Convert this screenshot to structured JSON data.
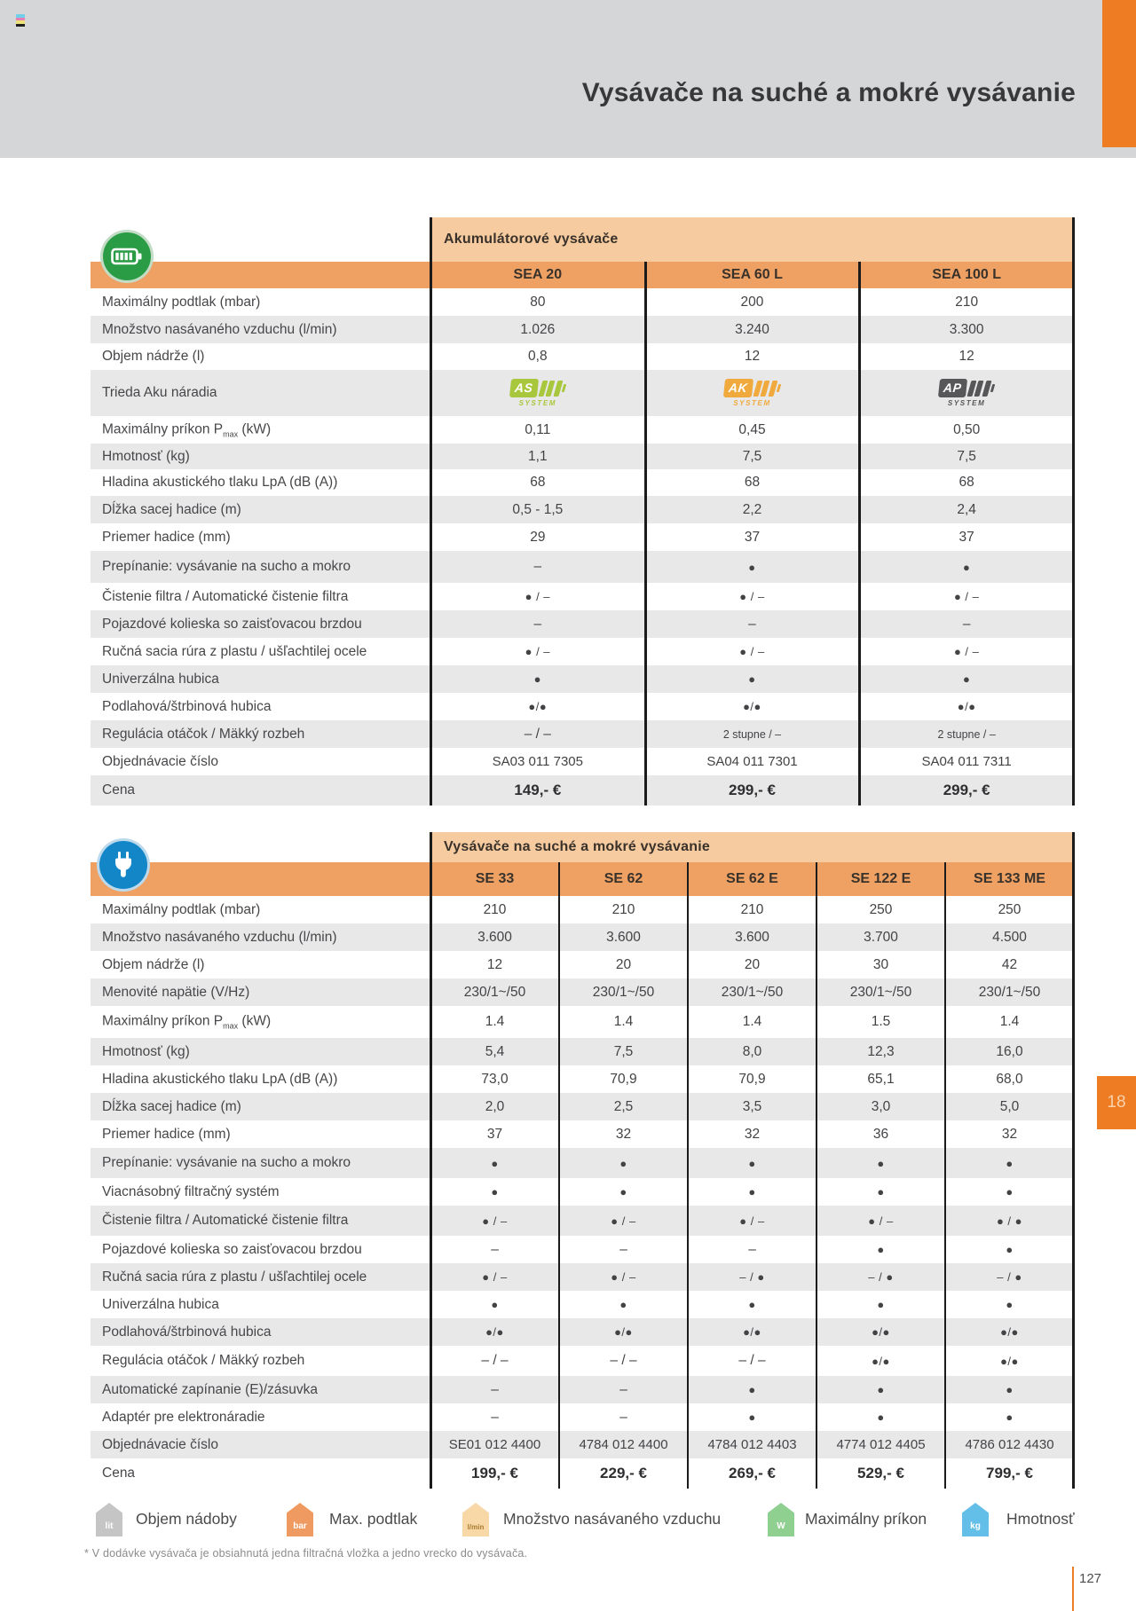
{
  "header": {
    "title": "Vysávače na suché a mokré vysávanie"
  },
  "accent": {
    "side_tab_label": "18",
    "page_number": "127"
  },
  "footnote": "* V dodávke vysávača je obsiahnutá jedna filtračná vložka a jedno vrecko do vysávača.",
  "colors": {
    "brand_orange": "#ee7c22",
    "band_orange": "#efa164",
    "peach": "#f6cba0",
    "row_gray": "#e8e8e9",
    "header_gray": "#d5d6d8"
  },
  "tables": [
    {
      "id": "t1",
      "icon": "battery-icon",
      "header": "Akumulátorové vysávače",
      "models": [
        "SEA 20",
        "SEA 60 L",
        "SEA 100 L"
      ],
      "system_word": "SYSTEM",
      "rows": [
        {
          "label": "Maximálny podtlak (mbar)",
          "values": [
            "80",
            "200",
            "210"
          ]
        },
        {
          "label": "Množstvo nasávaného vzduchu (l/min)",
          "values": [
            "1.026",
            "3.240",
            "3.300"
          ]
        },
        {
          "label": "Objem nádrže (l)",
          "values": [
            "0,8",
            "12",
            "12"
          ]
        },
        {
          "label": "Trieda Aku náradia",
          "type": "badges",
          "badges": [
            {
              "letters": "AS",
              "color": "#a8c73c"
            },
            {
              "letters": "AK",
              "color": "#f0a93c"
            },
            {
              "letters": "AP",
              "color": "#57575a"
            }
          ]
        },
        {
          "label_pre": "Maximálny príkon P",
          "label_sub": "max",
          "label_post": " (kW)",
          "values": [
            "0,11",
            "0,45",
            "0,50"
          ]
        },
        {
          "label": "Hmotnosť (kg)",
          "values": [
            "1,1",
            "7,5",
            "7,5"
          ]
        },
        {
          "label": "Hladina akustického tlaku LpA (dB (A))",
          "values": [
            "68",
            "68",
            "68"
          ]
        },
        {
          "label": "Dĺžka sacej hadice (m)",
          "values": [
            "0,5 - 1,5",
            "2,2",
            "2,4"
          ]
        },
        {
          "label": "Priemer hadice (mm)",
          "values": [
            "29",
            "37",
            "37"
          ]
        },
        {
          "label": "Prepínanie: vysávanie na sucho a mokro",
          "values": [
            "–",
            "●",
            "●"
          ]
        },
        {
          "label": "Čistenie filtra / Automatické čistenie filtra",
          "values": [
            "● / –",
            "● / –",
            "● / –"
          ]
        },
        {
          "label": "Pojazdové kolieska so zaisťovacou brzdou",
          "values": [
            "–",
            "–",
            "–"
          ]
        },
        {
          "label": "Ručná sacia rúra z plastu / ušľachtilej ocele",
          "values": [
            "● / –",
            "● / –",
            "● / –"
          ]
        },
        {
          "label": "Univerzálna hubica",
          "values": [
            "●",
            "●",
            "●"
          ]
        },
        {
          "label": "Podlahová/štrbinová hubica",
          "values": [
            "●/●",
            "●/●",
            "●/●"
          ]
        },
        {
          "label": "Regulácia otáčok / Mäkký rozbeh",
          "values": [
            "– / –",
            "2 stupne / –",
            "2 stupne / –"
          ]
        },
        {
          "label": "Objednávacie číslo",
          "values": [
            "SA03 011 7305",
            "SA04 011 7301",
            "SA04 011 7311"
          ]
        },
        {
          "label": "Cena",
          "values": [
            "149,- €",
            "299,- €",
            "299,- €"
          ]
        }
      ]
    },
    {
      "id": "t2",
      "icon": "plug-icon",
      "header": "Vysávače na suché a mokré vysávanie",
      "models": [
        "SE 33",
        "SE 62",
        "SE 62 E",
        "SE 122 E",
        "SE 133 ME"
      ],
      "rows": [
        {
          "label": "Maximálny podtlak (mbar)",
          "values": [
            "210",
            "210",
            "210",
            "250",
            "250"
          ]
        },
        {
          "label": "Množstvo nasávaného vzduchu (l/min)",
          "values": [
            "3.600",
            "3.600",
            "3.600",
            "3.700",
            "4.500"
          ]
        },
        {
          "label": "Objem nádrže (l)",
          "values": [
            "12",
            "20",
            "20",
            "30",
            "42"
          ]
        },
        {
          "label": "Menovité napätie (V/Hz)",
          "values": [
            "230/1~/50",
            "230/1~/50",
            "230/1~/50",
            "230/1~/50",
            "230/1~/50"
          ]
        },
        {
          "label_pre": "Maximálny príkon P",
          "label_sub": "max",
          "label_post": " (kW)",
          "values": [
            "1.4",
            "1.4",
            "1.4",
            "1.5",
            "1.4"
          ]
        },
        {
          "label": "Hmotnosť (kg)",
          "values": [
            "5,4",
            "7,5",
            "8,0",
            "12,3",
            "16,0"
          ]
        },
        {
          "label": "Hladina akustického tlaku LpA (dB (A))",
          "values": [
            "73,0",
            "70,9",
            "70,9",
            "65,1",
            "68,0"
          ]
        },
        {
          "label": "Dĺžka sacej hadice (m)",
          "values": [
            "2,0",
            "2,5",
            "3,5",
            "3,0",
            "5,0"
          ]
        },
        {
          "label": "Priemer hadice (mm)",
          "values": [
            "37",
            "32",
            "32",
            "36",
            "32"
          ]
        },
        {
          "label": "Prepínanie: vysávanie na sucho a mokro",
          "values": [
            "●",
            "●",
            "●",
            "●",
            "●"
          ]
        },
        {
          "label": "Viacnásobný filtračný systém",
          "values": [
            "●",
            "●",
            "●",
            "●",
            "●"
          ]
        },
        {
          "label": "Čistenie filtra / Automatické čistenie filtra",
          "values": [
            "● / –",
            "● / –",
            "● / –",
            "● / –",
            "● / ●"
          ]
        },
        {
          "label": "Pojazdové kolieska so zaisťovacou brzdou",
          "values": [
            "–",
            "–",
            "–",
            "●",
            "●"
          ]
        },
        {
          "label": "Ručná sacia rúra z plastu / ušľachtilej ocele",
          "values": [
            "● / –",
            "● / –",
            "– / ●",
            "– / ●",
            "– / ●"
          ]
        },
        {
          "label": "Univerzálna hubica",
          "values": [
            "●",
            "●",
            "●",
            "●",
            "●"
          ]
        },
        {
          "label": "Podlahová/štrbinová hubica",
          "values": [
            "●/●",
            "●/●",
            "●/●",
            "●/●",
            "●/●"
          ]
        },
        {
          "label": "Regulácia otáčok / Mäkký rozbeh",
          "values": [
            "– / –",
            "– / –",
            "– / –",
            "●/●",
            "●/●"
          ]
        },
        {
          "label": "Automatické zapínanie (E)/zásuvka",
          "values": [
            "–",
            "–",
            "●",
            "●",
            "●"
          ]
        },
        {
          "label": "Adaptér pre elektronáradie",
          "values": [
            "–",
            "–",
            "●",
            "●",
            "●"
          ]
        },
        {
          "label": "Objednávacie číslo",
          "values": [
            "SE01 012 4400",
            "4784 012 4400",
            "4784 012 4403",
            "4774 012 4405",
            "4786 012 4430"
          ]
        },
        {
          "label": "Cena",
          "values": [
            "199,- €",
            "229,- €",
            "269,- €",
            "529,- €",
            "799,- €"
          ]
        }
      ]
    }
  ],
  "legend": [
    {
      "tag": "lit",
      "color": "#c5c5c5",
      "text_color": "#ffffff",
      "label": "Objem nádoby"
    },
    {
      "tag": "bar",
      "color": "#ef9a60",
      "text_color": "#ffffff",
      "label": "Max. podtlak"
    },
    {
      "tag": "l/min",
      "color": "#f7d8a6",
      "text_color": "#a97b2f",
      "label": "Množstvo nasávaného vzduchu"
    },
    {
      "tag": "W",
      "color": "#8fcf90",
      "text_color": "#ffffff",
      "label": "Maximálny príkon"
    },
    {
      "tag": "kg",
      "color": "#64bfe8",
      "text_color": "#ffffff",
      "label": "Hmotnosť"
    }
  ]
}
